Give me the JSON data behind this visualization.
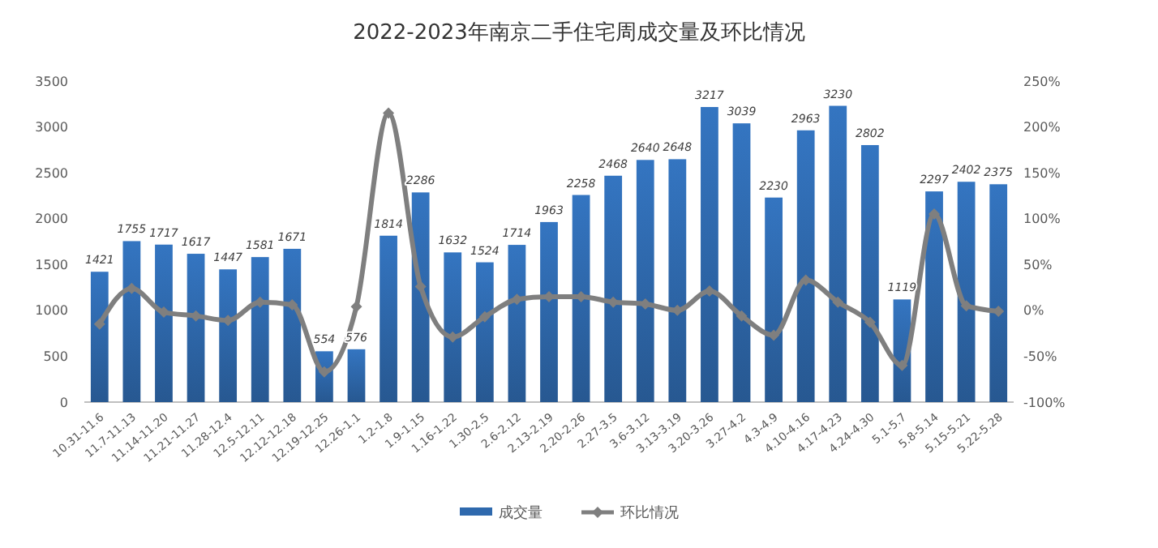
{
  "chart_data": {
    "type": "bar",
    "title": "2022-2023年南京二手住宅周成交量及环比情况",
    "categories": [
      "10.31-11.6",
      "11.7-11.13",
      "11.14-11.20",
      "11.21-11.27",
      "11.28-12.4",
      "12.5-12.11",
      "12.12-12.18",
      "12.19-12.25",
      "12.26-1.1",
      "1.2-1.8",
      "1.9-1.15",
      "1.16-1.22",
      "1.30-2.5",
      "2.6-2.12",
      "2.13-2.19",
      "2.20-2.26",
      "2.27-3.5",
      "3.6-3.12",
      "3.13-3.19",
      "3.20-3.26",
      "3.27-4.2",
      "4.3-4.9",
      "4.10-4.16",
      "4.17-4.23",
      "4.24-4.30",
      "5.1-5.7",
      "5.8-5.14",
      "5.15-5.21",
      "5.22-5.28"
    ],
    "series": [
      {
        "name": "成交量",
        "type": "bar",
        "color": "#2f69ad",
        "values": [
          1421,
          1755,
          1717,
          1617,
          1447,
          1581,
          1671,
          554,
          576,
          1814,
          2286,
          1632,
          1524,
          1714,
          1963,
          2258,
          2468,
          2640,
          2648,
          3217,
          3039,
          2230,
          2963,
          3230,
          2802,
          1119,
          2297,
          2402,
          2375
        ],
        "value_labels": [
          "1421",
          "1755",
          "1717",
          "1617",
          "1447",
          "1581",
          "1671",
          "554",
          "576",
          "1814",
          "2286",
          "1632",
          "1524",
          "1714",
          "1963",
          "2258",
          "2468",
          "2640",
          "2648",
          "3217",
          "3039",
          "2230",
          "2963",
          "3230",
          "2802",
          "1119",
          "2297",
          "2402",
          "2375"
        ]
      },
      {
        "name": "环比情况",
        "type": "line",
        "axis": "y2",
        "color": "#7f7f7f",
        "marker": "diamond",
        "values": [
          -15,
          24,
          -2,
          -6,
          -11,
          9,
          6,
          -67,
          4,
          215,
          26,
          -29,
          -7,
          12,
          15,
          15,
          9,
          7,
          0,
          21,
          -6,
          -27,
          33,
          9,
          -13,
          -60,
          105,
          5,
          -1
        ]
      }
    ],
    "ylim": [
      0,
      3500
    ],
    "yticks": [
      0,
      500,
      1000,
      1500,
      2000,
      2500,
      3000,
      3500
    ],
    "y2lim": [
      -100,
      250
    ],
    "y2ticks": [
      {
        "value": -100,
        "label": "-100%"
      },
      {
        "value": -50,
        "label": "-50%"
      },
      {
        "value": 0,
        "label": "0%"
      },
      {
        "value": 50,
        "label": "50%"
      },
      {
        "value": 100,
        "label": "100%"
      },
      {
        "value": 150,
        "label": "150%"
      },
      {
        "value": 200,
        "label": "200%"
      },
      {
        "value": 250,
        "label": "250%"
      }
    ],
    "grid": false,
    "legend": "bottom"
  }
}
